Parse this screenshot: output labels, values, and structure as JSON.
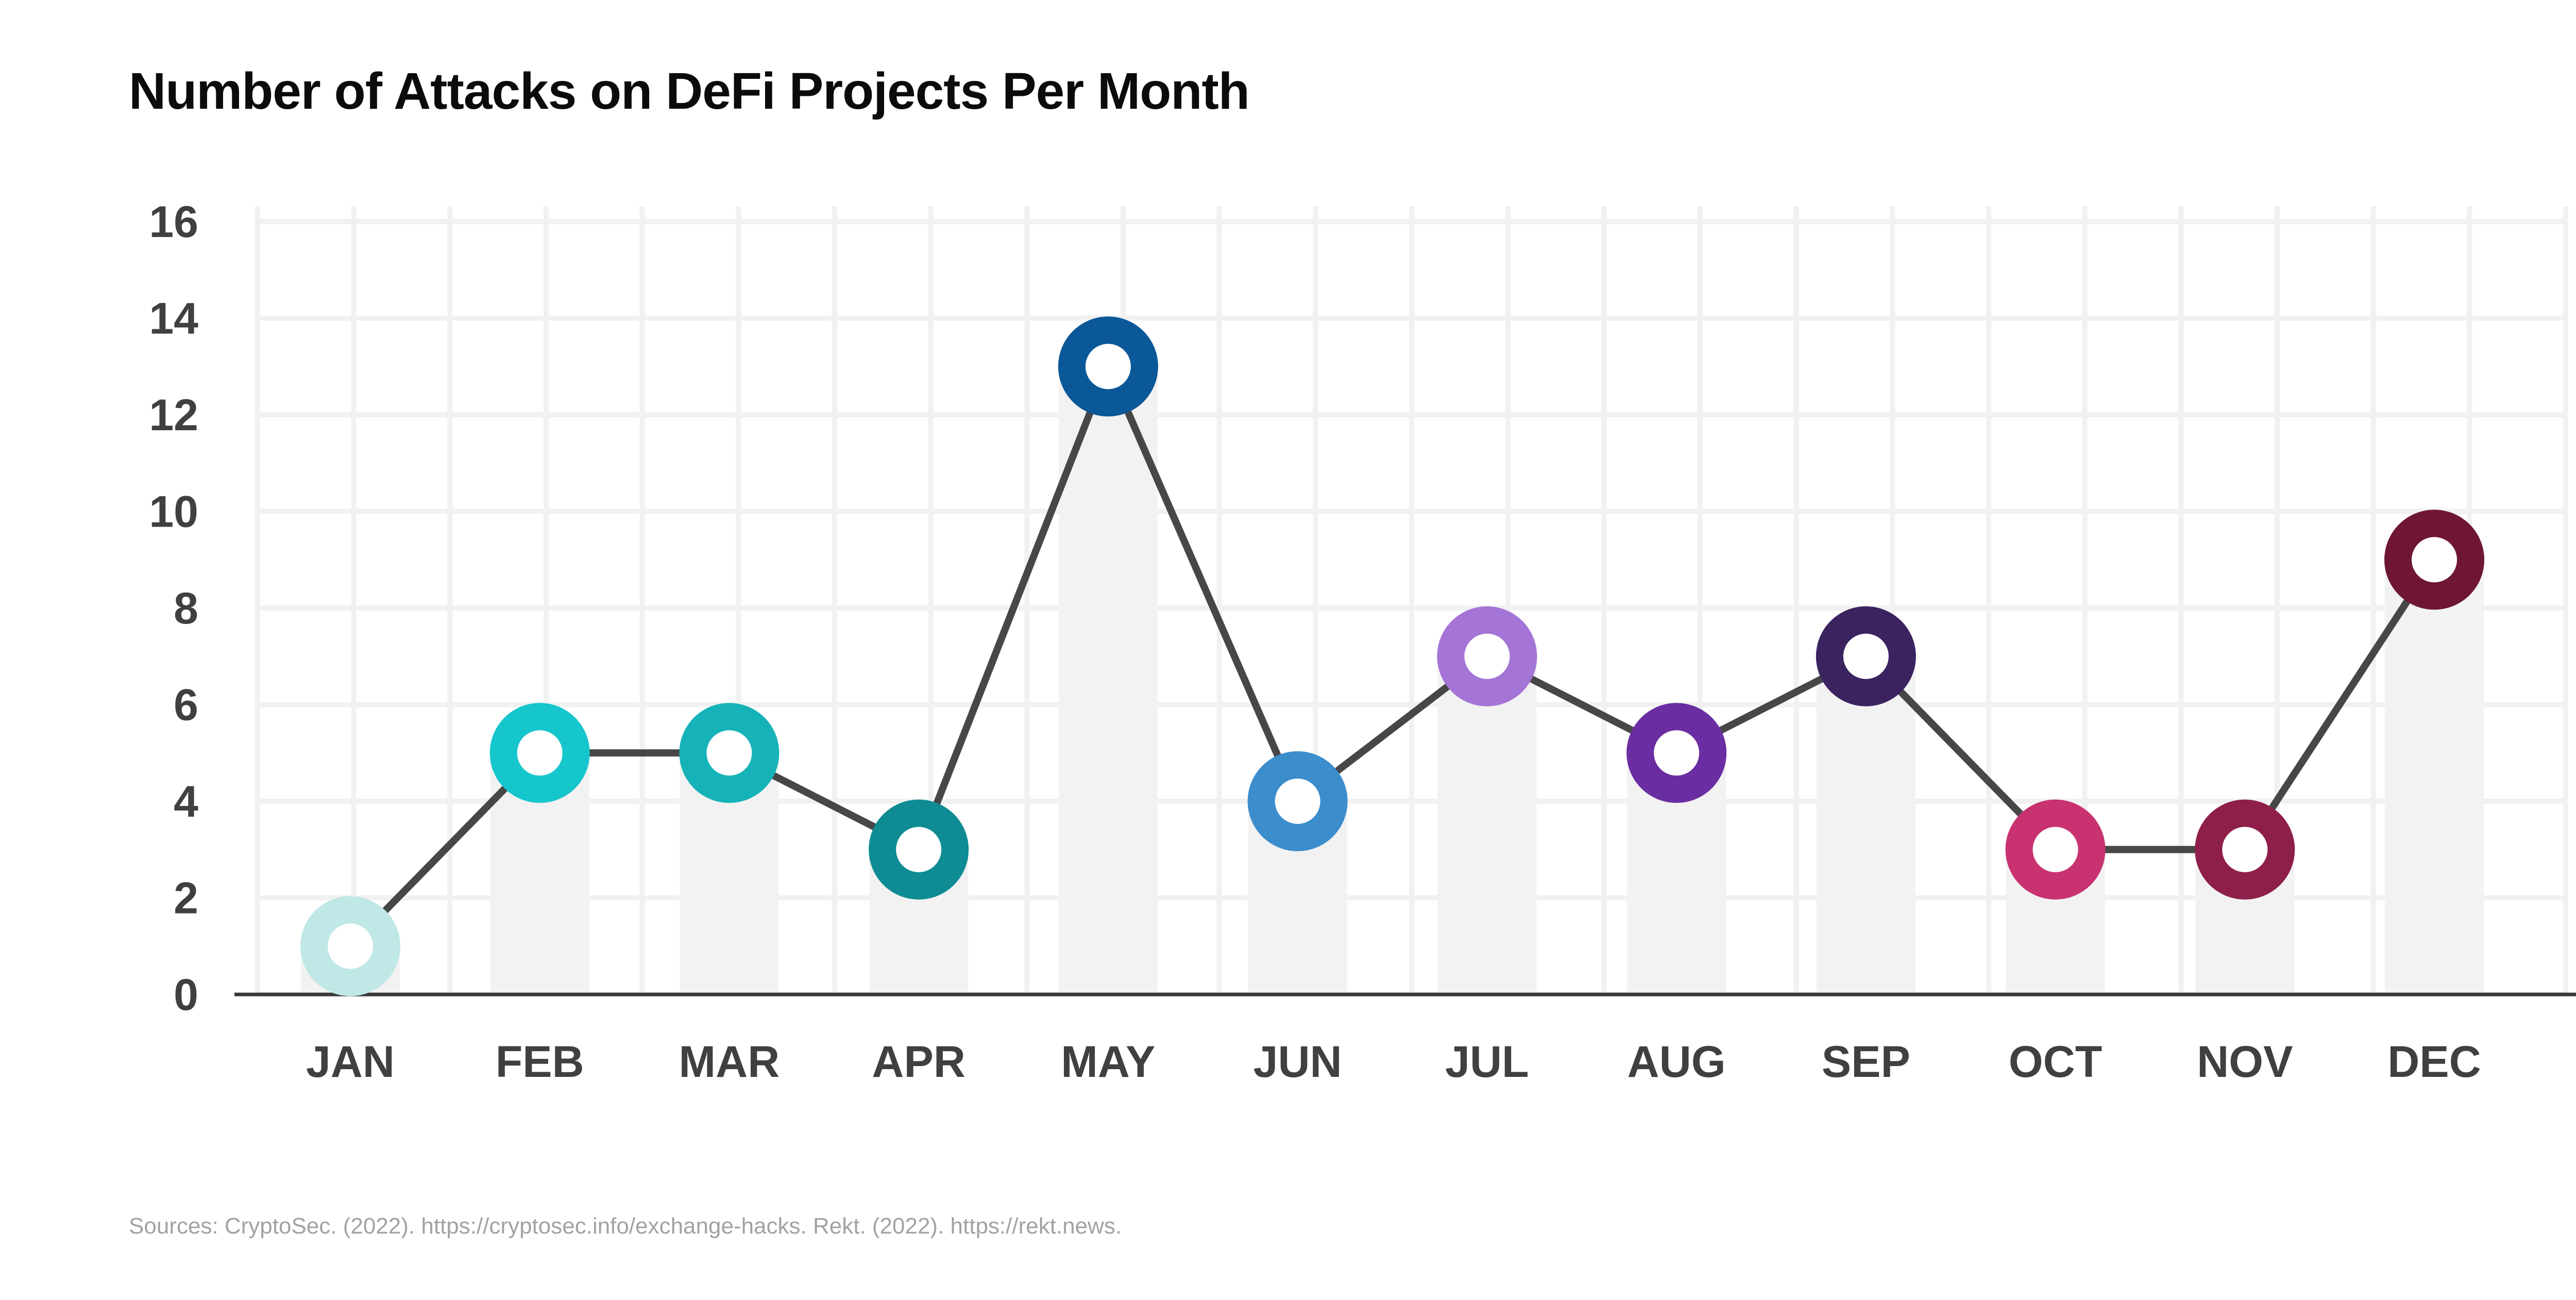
{
  "title": "Number of Attacks on DeFi Projects Per Month",
  "source": "Sources:  CryptoSec. (2022). https://cryptosec.info/exchange-hacks. Rekt. (2022). https://rekt.news.",
  "chart_data": {
    "type": "line",
    "title": "Number of Attacks on DeFi Projects Per Month",
    "xlabel": "",
    "ylabel": "",
    "categories": [
      "JAN",
      "FEB",
      "MAR",
      "APR",
      "MAY",
      "JUN",
      "JUL",
      "AUG",
      "SEP",
      "OCT",
      "NOV",
      "DEC"
    ],
    "values": [
      1,
      5,
      5,
      3,
      13,
      4,
      7,
      5,
      7,
      3,
      3,
      9
    ],
    "ylim": [
      0,
      16
    ],
    "yticks": [
      "0",
      "2",
      "4",
      "6",
      "8",
      "10",
      "12",
      "14",
      "16"
    ],
    "grid": true,
    "legend": "none",
    "colors": {
      "line": "#474747",
      "shadow_bar": "#f2f2f2",
      "grid": "#f1f1f1",
      "axis": "#3a3a3a",
      "markers": [
        "#bfe8e6",
        "#15c6cc",
        "#15b3b8",
        "#0e8b93",
        "#0a5898",
        "#3b8dcc",
        "#a474d6",
        "#6b2ea2",
        "#3b2360",
        "#c83271",
        "#8e1f4a",
        "#6e1632"
      ]
    }
  }
}
